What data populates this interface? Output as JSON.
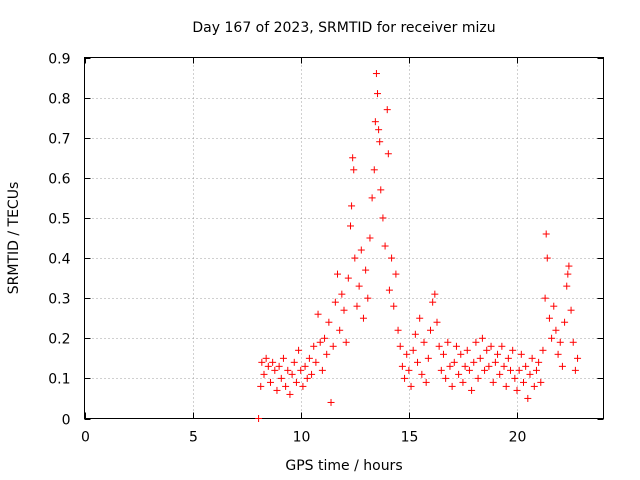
{
  "chart_data": {
    "type": "scatter",
    "title": "Day 167 of 2023, SRMTID for receiver mizu",
    "xlabel": "GPS time / hours",
    "ylabel": "SRMTID / TECUs",
    "xlim": [
      0,
      24
    ],
    "ylim": [
      0,
      0.9
    ],
    "x_ticks": [
      0,
      5,
      10,
      15,
      20
    ],
    "x_tick_labels": [
      "0",
      "5",
      "10",
      "15",
      "20"
    ],
    "y_ticks": [
      0,
      0.1,
      0.2,
      0.3,
      0.4,
      0.5,
      0.6,
      0.7,
      0.8,
      0.9
    ],
    "y_tick_labels": [
      "0",
      "0.1",
      "0.2",
      "0.3",
      "0.4",
      "0.5",
      "0.6",
      "0.7",
      "0.8",
      "0.9"
    ],
    "grid": true,
    "marker": "plus",
    "series": [
      {
        "name": "SRMTID",
        "color": "#ff0000",
        "points": [
          [
            8.05,
            0.0
          ],
          [
            8.15,
            0.08
          ],
          [
            8.2,
            0.14
          ],
          [
            8.3,
            0.11
          ],
          [
            8.4,
            0.15
          ],
          [
            8.5,
            0.13
          ],
          [
            8.6,
            0.09
          ],
          [
            8.7,
            0.14
          ],
          [
            8.8,
            0.12
          ],
          [
            8.9,
            0.07
          ],
          [
            9.0,
            0.13
          ],
          [
            9.1,
            0.1
          ],
          [
            9.2,
            0.15
          ],
          [
            9.3,
            0.08
          ],
          [
            9.4,
            0.12
          ],
          [
            9.5,
            0.06
          ],
          [
            9.6,
            0.11
          ],
          [
            9.7,
            0.14
          ],
          [
            9.8,
            0.09
          ],
          [
            9.9,
            0.17
          ],
          [
            10.0,
            0.12
          ],
          [
            10.1,
            0.08
          ],
          [
            10.2,
            0.13
          ],
          [
            10.3,
            0.1
          ],
          [
            10.4,
            0.15
          ],
          [
            10.5,
            0.11
          ],
          [
            10.6,
            0.18
          ],
          [
            10.7,
            0.14
          ],
          [
            10.8,
            0.26
          ],
          [
            10.9,
            0.19
          ],
          [
            11.0,
            0.12
          ],
          [
            11.1,
            0.2
          ],
          [
            11.2,
            0.16
          ],
          [
            11.3,
            0.24
          ],
          [
            11.4,
            0.04
          ],
          [
            11.5,
            0.18
          ],
          [
            11.6,
            0.29
          ],
          [
            11.7,
            0.36
          ],
          [
            11.8,
            0.22
          ],
          [
            11.9,
            0.31
          ],
          [
            12.0,
            0.27
          ],
          [
            12.1,
            0.19
          ],
          [
            12.2,
            0.35
          ],
          [
            12.3,
            0.48
          ],
          [
            12.35,
            0.53
          ],
          [
            12.4,
            0.65
          ],
          [
            12.45,
            0.62
          ],
          [
            12.5,
            0.4
          ],
          [
            12.6,
            0.28
          ],
          [
            12.7,
            0.33
          ],
          [
            12.8,
            0.42
          ],
          [
            12.9,
            0.25
          ],
          [
            13.0,
            0.37
          ],
          [
            13.1,
            0.3
          ],
          [
            13.2,
            0.45
          ],
          [
            13.3,
            0.55
          ],
          [
            13.4,
            0.62
          ],
          [
            13.45,
            0.74
          ],
          [
            13.5,
            0.86
          ],
          [
            13.55,
            0.81
          ],
          [
            13.6,
            0.72
          ],
          [
            13.65,
            0.69
          ],
          [
            13.7,
            0.57
          ],
          [
            13.8,
            0.5
          ],
          [
            13.9,
            0.43
          ],
          [
            14.0,
            0.77
          ],
          [
            14.05,
            0.66
          ],
          [
            14.1,
            0.32
          ],
          [
            14.2,
            0.4
          ],
          [
            14.3,
            0.28
          ],
          [
            14.4,
            0.36
          ],
          [
            14.5,
            0.22
          ],
          [
            14.6,
            0.18
          ],
          [
            14.7,
            0.13
          ],
          [
            14.8,
            0.1
          ],
          [
            14.9,
            0.16
          ],
          [
            15.0,
            0.12
          ],
          [
            15.1,
            0.08
          ],
          [
            15.2,
            0.17
          ],
          [
            15.3,
            0.21
          ],
          [
            15.4,
            0.14
          ],
          [
            15.5,
            0.25
          ],
          [
            15.6,
            0.11
          ],
          [
            15.7,
            0.19
          ],
          [
            15.8,
            0.09
          ],
          [
            15.9,
            0.15
          ],
          [
            16.0,
            0.22
          ],
          [
            16.1,
            0.29
          ],
          [
            16.2,
            0.31
          ],
          [
            16.3,
            0.24
          ],
          [
            16.4,
            0.18
          ],
          [
            16.5,
            0.12
          ],
          [
            16.6,
            0.16
          ],
          [
            16.7,
            0.1
          ],
          [
            16.8,
            0.19
          ],
          [
            16.9,
            0.13
          ],
          [
            17.0,
            0.08
          ],
          [
            17.1,
            0.14
          ],
          [
            17.2,
            0.18
          ],
          [
            17.3,
            0.11
          ],
          [
            17.4,
            0.16
          ],
          [
            17.5,
            0.09
          ],
          [
            17.6,
            0.13
          ],
          [
            17.7,
            0.17
          ],
          [
            17.8,
            0.12
          ],
          [
            17.9,
            0.07
          ],
          [
            18.0,
            0.14
          ],
          [
            18.1,
            0.19
          ],
          [
            18.2,
            0.1
          ],
          [
            18.3,
            0.15
          ],
          [
            18.4,
            0.2
          ],
          [
            18.5,
            0.12
          ],
          [
            18.6,
            0.17
          ],
          [
            18.7,
            0.13
          ],
          [
            18.8,
            0.18
          ],
          [
            18.9,
            0.09
          ],
          [
            19.0,
            0.14
          ],
          [
            19.1,
            0.16
          ],
          [
            19.2,
            0.11
          ],
          [
            19.3,
            0.18
          ],
          [
            19.4,
            0.13
          ],
          [
            19.5,
            0.08
          ],
          [
            19.6,
            0.15
          ],
          [
            19.7,
            0.12
          ],
          [
            19.8,
            0.17
          ],
          [
            19.9,
            0.1
          ],
          [
            20.0,
            0.07
          ],
          [
            20.1,
            0.12
          ],
          [
            20.2,
            0.16
          ],
          [
            20.3,
            0.09
          ],
          [
            20.4,
            0.13
          ],
          [
            20.5,
            0.05
          ],
          [
            20.6,
            0.11
          ],
          [
            20.7,
            0.15
          ],
          [
            20.8,
            0.08
          ],
          [
            20.9,
            0.12
          ],
          [
            21.0,
            0.14
          ],
          [
            21.1,
            0.09
          ],
          [
            21.2,
            0.17
          ],
          [
            21.3,
            0.3
          ],
          [
            21.35,
            0.46
          ],
          [
            21.4,
            0.4
          ],
          [
            21.5,
            0.25
          ],
          [
            21.6,
            0.2
          ],
          [
            21.7,
            0.28
          ],
          [
            21.8,
            0.22
          ],
          [
            21.9,
            0.16
          ],
          [
            22.0,
            0.19
          ],
          [
            22.1,
            0.13
          ],
          [
            22.2,
            0.24
          ],
          [
            22.3,
            0.33
          ],
          [
            22.35,
            0.36
          ],
          [
            22.4,
            0.38
          ],
          [
            22.5,
            0.27
          ],
          [
            22.6,
            0.19
          ],
          [
            22.7,
            0.12
          ],
          [
            22.8,
            0.15
          ]
        ]
      }
    ]
  }
}
